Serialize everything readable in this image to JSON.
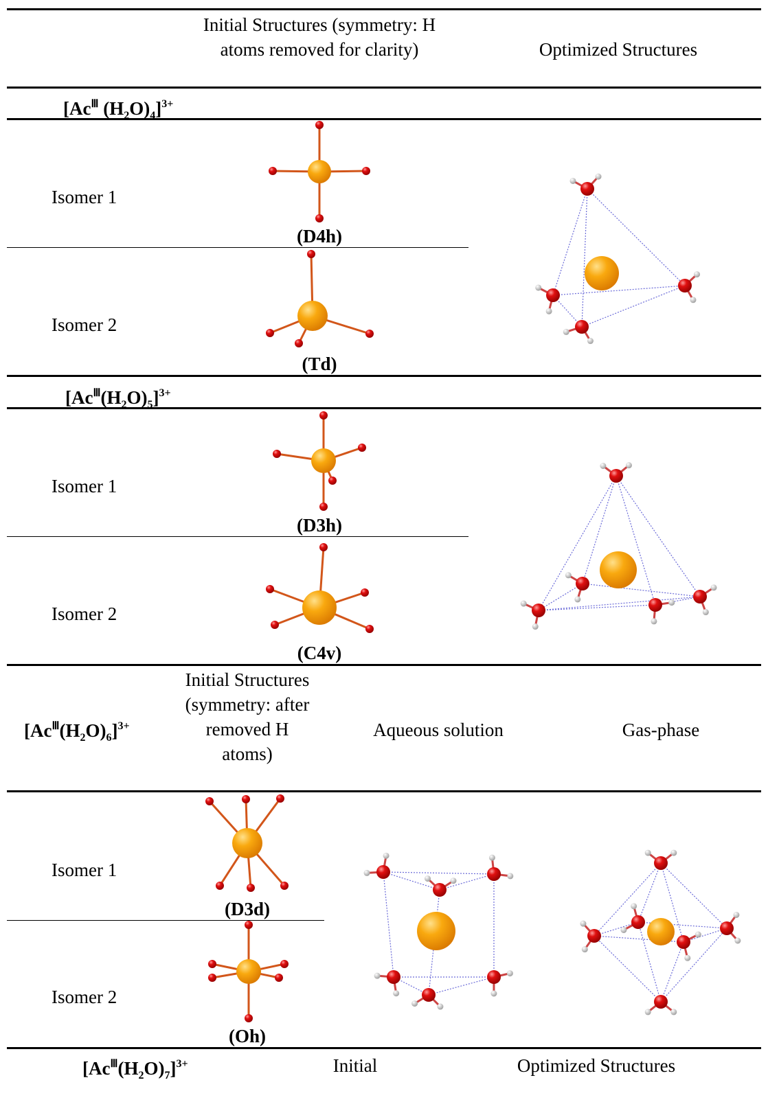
{
  "header": {
    "initial": "Initial Structures (symmetry: H atoms removed for clarity)",
    "optimized": "Optimized Structures"
  },
  "sections": [
    {
      "formula": [
        "[Ac",
        "Ⅲ",
        " (H",
        "2",
        "O)",
        "4",
        "]",
        "3+"
      ],
      "isomers": [
        {
          "label": "Isomer 1",
          "symmetry": "(D4h)"
        },
        {
          "label": "Isomer 2",
          "symmetry": "(Td)"
        }
      ]
    },
    {
      "formula": [
        "[Ac",
        "Ⅲ",
        "(H",
        "2",
        "O)",
        "5",
        "]",
        "3+"
      ],
      "isomers": [
        {
          "label": "Isomer 1",
          "symmetry": "(D3h)"
        },
        {
          "label": "Isomer 2",
          "symmetry": "(C4v)"
        }
      ]
    },
    {
      "formula": [
        "[Ac",
        "Ⅲ",
        "(H",
        "2",
        "O)",
        "6",
        "]",
        "3+"
      ],
      "columns": {
        "initial": "Initial Structures (symmetry: after removed H atoms)",
        "aqueous": "Aqueous solution",
        "gas": "Gas-phase"
      },
      "isomers": [
        {
          "label": "Isomer 1",
          "symmetry": "(D3d)"
        },
        {
          "label": "Isomer 2",
          "symmetry": "(Oh)"
        }
      ]
    },
    {
      "formula": [
        "[Ac",
        "Ⅲ",
        "(H",
        "2",
        "O)",
        "7",
        "]",
        "3+"
      ],
      "columns": {
        "initial": "Initial",
        "optimized": "Optimized Structures"
      }
    }
  ]
}
